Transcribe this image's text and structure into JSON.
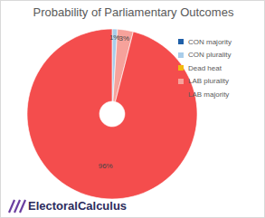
{
  "chart_data": {
    "type": "pie",
    "title": "Probability of Parliamentary Outcomes",
    "categories": [
      "CON majority",
      "CON plurality",
      "Dead heat",
      "LAB plurality",
      "LAB majority"
    ],
    "values": [
      0,
      1,
      0,
      3,
      96
    ],
    "value_labels": [
      null,
      "1%",
      null,
      "3%",
      "96%"
    ],
    "colors": [
      "#1f5fa8",
      "#a9cdea",
      "#f2b90f",
      "#f6a29b",
      "#f44d4d"
    ],
    "data_labels": true,
    "legend": "right",
    "annotations": [
      "ElectoralCalculus"
    ]
  }
}
